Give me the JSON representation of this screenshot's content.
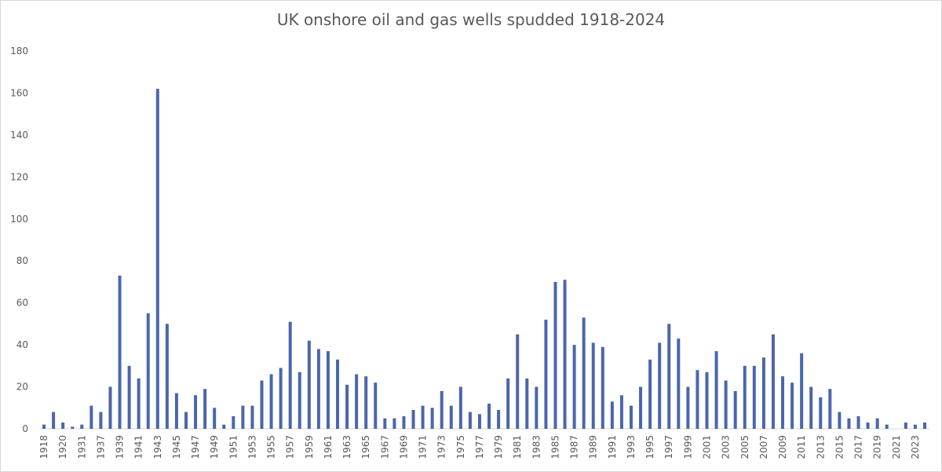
{
  "chart_data": {
    "type": "bar",
    "title": "UK onshore oil and gas wells spudded 1918-2024",
    "categories": [
      "1918",
      null,
      "1920",
      null,
      "1931",
      null,
      "1937",
      null,
      "1939",
      null,
      "1941",
      null,
      "1943",
      null,
      "1945",
      null,
      "1947",
      null,
      "1949",
      null,
      "1951",
      null,
      "1953",
      null,
      "1955",
      null,
      "1957",
      null,
      "1959",
      null,
      "1961",
      null,
      "1963",
      null,
      "1965",
      null,
      "1967",
      null,
      "1969",
      null,
      "1971",
      null,
      "1973",
      null,
      "1975",
      null,
      "1977",
      null,
      "1979",
      null,
      "1981",
      null,
      "1983",
      null,
      "1985",
      null,
      "1987",
      null,
      "1989",
      null,
      "1991",
      null,
      "1993",
      null,
      "1995",
      null,
      "1997",
      null,
      "1999",
      null,
      "2001",
      null,
      "2003",
      null,
      "2005",
      null,
      "2007",
      null,
      "2009",
      null,
      "2011",
      null,
      "2013",
      null,
      "2015",
      null,
      "2017",
      null,
      "2019",
      null,
      "2021",
      null,
      "2023",
      null
    ],
    "values": [
      2,
      8,
      3,
      1,
      2,
      11,
      8,
      20,
      73,
      30,
      24,
      55,
      162,
      50,
      17,
      8,
      16,
      19,
      10,
      2,
      6,
      11,
      11,
      23,
      26,
      29,
      51,
      27,
      42,
      38,
      37,
      33,
      21,
      26,
      25,
      22,
      5,
      5,
      6,
      9,
      11,
      10,
      18,
      11,
      20,
      8,
      7,
      12,
      9,
      24,
      45,
      24,
      20,
      52,
      70,
      71,
      40,
      53,
      41,
      39,
      13,
      16,
      11,
      20,
      33,
      41,
      50,
      43,
      20,
      28,
      27,
      37,
      23,
      18,
      30,
      30,
      34,
      45,
      25,
      22,
      36,
      20,
      15,
      19,
      8,
      5,
      6,
      3,
      5,
      2,
      0,
      3,
      2,
      3
    ],
    "color": "#4a66ac",
    "ylim": [
      0,
      180
    ],
    "yticks": [
      0,
      20,
      40,
      60,
      80,
      100,
      120,
      140,
      160,
      180
    ],
    "grid": false
  }
}
